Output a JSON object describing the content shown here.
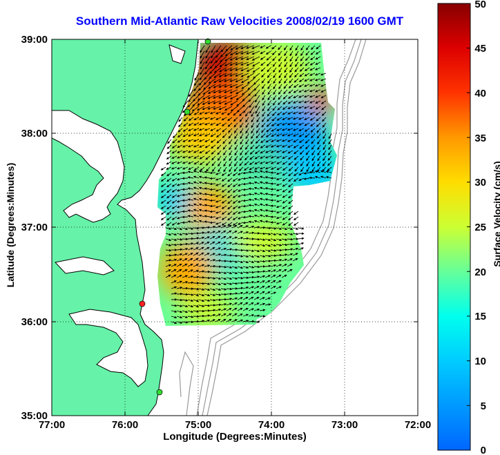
{
  "chart_data": {
    "type": "heatmap",
    "title": "Southern Mid-Atlantic Raw Velocities 2008/02/19 1600 GMT",
    "xlabel": "Longitude (Degrees:Minutes)",
    "ylabel": "Latitude (Degrees:Minutes)",
    "colorbar_label": "Surface Velocity (cm/s)",
    "x_ticks": [
      "77:00",
      "76:00",
      "75:00",
      "74:00",
      "73:00",
      "72:00"
    ],
    "y_ticks": [
      "39:00",
      "38:00",
      "37:00",
      "36:00",
      "35:00"
    ],
    "xlim": [
      -77,
      -72
    ],
    "ylim": [
      35,
      39
    ],
    "colorbar_ticks": [
      "50",
      "45",
      "40",
      "35",
      "30",
      "25",
      "20",
      "15",
      "10",
      "5",
      "0"
    ],
    "clim": [
      0,
      50
    ],
    "grid": true,
    "colors": {
      "land": "#66f2a8",
      "water": "#ffffff",
      "coast": "#000000",
      "bathymetry": "#999999",
      "station_green": "#33dd33",
      "station_red": "#ff2222",
      "vectors": "#000000",
      "title": "#0000ff"
    },
    "stations": [
      {
        "lon": -74.87,
        "lat": 38.95,
        "color": "green"
      },
      {
        "lon": -75.1,
        "lat": 38.2,
        "color": "green"
      },
      {
        "lon": -75.7,
        "lat": 36.18,
        "color": "red"
      },
      {
        "lon": -75.47,
        "lat": 35.26,
        "color": "green"
      }
    ]
  }
}
